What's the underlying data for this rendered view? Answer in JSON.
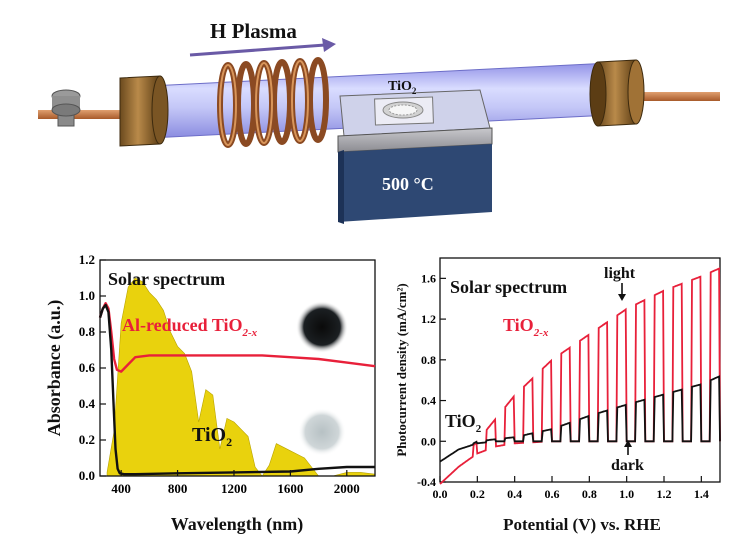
{
  "apparatus": {
    "plasma_label": "H Plasma",
    "sample_label_base": "TiO",
    "sample_label_sub": "2",
    "heater_label": "500 °C"
  },
  "chart_data": [
    {
      "type": "line",
      "xlabel": "Wavelength (nm)",
      "ylabel": "Absorbance (a.u.)",
      "xlim": [
        250,
        2200
      ],
      "ylim": [
        0,
        1.2
      ],
      "xticks": [
        "400",
        "800",
        "1200",
        "1600",
        "2000"
      ],
      "yticks": [
        "0.0",
        "0.2",
        "0.4",
        "0.6",
        "0.8",
        "1.0",
        "1.2"
      ],
      "annotations": {
        "solar": "Solar spectrum",
        "reduced_base": "Al-reduced TiO",
        "reduced_sub": "2-x",
        "tio2_base": "TiO",
        "tio2_sub": "2"
      },
      "colors": {
        "reduced": "#e8203a",
        "tio2": "#111111",
        "solar": "#e8d000"
      },
      "series": [
        {
          "x": [
            250,
            270,
            290,
            310,
            330,
            350,
            370,
            400,
            450,
            500,
            600,
            700,
            800,
            900,
            1000,
            1100,
            1200,
            1400,
            1600,
            1800,
            2000,
            2200
          ],
          "y": [
            0.88,
            0.93,
            0.96,
            0.93,
            0.8,
            0.65,
            0.59,
            0.58,
            0.62,
            0.66,
            0.67,
            0.67,
            0.67,
            0.67,
            0.67,
            0.67,
            0.67,
            0.67,
            0.66,
            0.65,
            0.63,
            0.61
          ]
        },
        {
          "x": [
            250,
            270,
            290,
            310,
            330,
            345,
            360,
            375,
            390,
            420,
            500,
            800,
            1200,
            1600,
            1800,
            2000,
            2200
          ],
          "y": [
            0.88,
            0.93,
            0.95,
            0.91,
            0.7,
            0.42,
            0.15,
            0.04,
            0.015,
            0.01,
            0.01,
            0.015,
            0.02,
            0.025,
            0.04,
            0.05,
            0.05
          ]
        }
      ],
      "solar_spectrum": {
        "x": [
          300,
          350,
          400,
          450,
          500,
          550,
          600,
          650,
          700,
          750,
          800,
          850,
          900,
          950,
          1000,
          1050,
          1100,
          1150,
          1200,
          1250,
          1300,
          1350,
          1400,
          1450,
          1500,
          1550,
          1600,
          1650,
          1700,
          1750,
          1800,
          1850,
          1900,
          2000,
          2100,
          2200
        ],
        "y": [
          0.02,
          0.25,
          0.85,
          1.05,
          1.1,
          1.08,
          1.02,
          0.98,
          0.92,
          0.8,
          0.72,
          0.68,
          0.58,
          0.3,
          0.48,
          0.45,
          0.15,
          0.32,
          0.3,
          0.26,
          0.22,
          0.05,
          0.0,
          0.06,
          0.18,
          0.16,
          0.14,
          0.12,
          0.1,
          0.05,
          0.0,
          0.0,
          0.0,
          0.02,
          0.02,
          0.01
        ]
      }
    },
    {
      "type": "line",
      "xlabel": "Potential (V) vs. RHE",
      "ylabel": "Photocurrent density (mA/cm²)",
      "xlim": [
        0,
        1.5
      ],
      "ylim": [
        -0.4,
        1.8
      ],
      "xticks": [
        "0.0",
        "0.2",
        "0.4",
        "0.6",
        "0.8",
        "1.0",
        "1.2",
        "1.4"
      ],
      "yticks": [
        "-0.4",
        "0.0",
        "0.4",
        "0.8",
        "1.2",
        "1.6"
      ],
      "annotations": {
        "solar": "Solar spectrum",
        "light": "light",
        "dark": "dark",
        "reduced_base": "TiO",
        "reduced_sub": "2-x",
        "tio2_base": "TiO",
        "tio2_sub": "2"
      },
      "colors": {
        "reduced": "#e8203a",
        "tio2": "#111111"
      },
      "series": [
        {
          "dark": {
            "x": [
              0.0,
              0.1,
              0.2,
              0.3,
              0.4,
              0.6,
              0.8,
              1.0,
              1.2,
              1.4,
              1.5
            ],
            "y": [
              -0.42,
              -0.25,
              -0.12,
              -0.05,
              -0.02,
              0.0,
              0.0,
              0.0,
              0.0,
              0.0,
              0.0
            ]
          },
          "light": {
            "x": [
              0.0,
              0.2,
              0.4,
              0.6,
              0.8,
              1.0,
              1.2,
              1.4,
              1.5
            ],
            "y": [
              -0.4,
              0.0,
              0.45,
              0.8,
              1.05,
              1.3,
              1.48,
              1.62,
              1.7
            ]
          }
        },
        {
          "dark": {
            "x": [
              0.0,
              0.1,
              0.2,
              0.3,
              0.4,
              0.6,
              0.8,
              1.0,
              1.2,
              1.4,
              1.5
            ],
            "y": [
              -0.2,
              -0.08,
              -0.02,
              0.0,
              0.0,
              0.0,
              0.0,
              0.0,
              0.0,
              0.0,
              0.0
            ]
          },
          "light": {
            "x": [
              0.0,
              0.2,
              0.4,
              0.6,
              0.8,
              1.0,
              1.2,
              1.4,
              1.5
            ],
            "y": [
              -0.2,
              0.0,
              0.04,
              0.12,
              0.25,
              0.36,
              0.46,
              0.56,
              0.64
            ]
          }
        }
      ],
      "chopping_period_v": 0.1
    }
  ]
}
